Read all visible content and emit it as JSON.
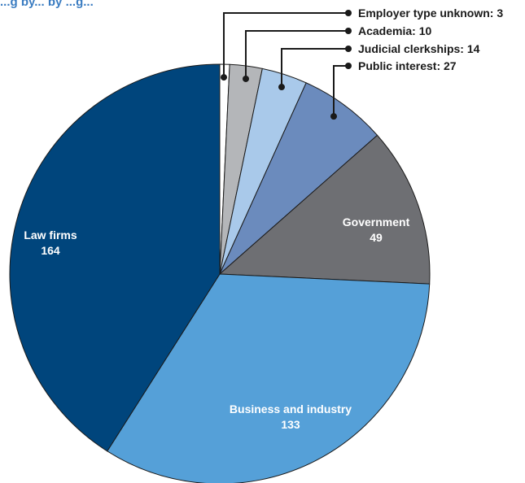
{
  "header_fragment": "...g by... by ...g...",
  "chart_data": {
    "type": "pie",
    "title": "",
    "start": "top",
    "direction": "clockwise",
    "slices": [
      {
        "label": "Employer type unknown",
        "value": 3,
        "color": "#ffffff",
        "callout": true
      },
      {
        "label": "Academia",
        "value": 10,
        "color": "#b4b6b9",
        "callout": true
      },
      {
        "label": "Judicial clerkships",
        "value": 14,
        "color": "#a9c9ea",
        "callout": true
      },
      {
        "label": "Public interest",
        "value": 27,
        "color": "#6b8bbd",
        "callout": true
      },
      {
        "label": "Government",
        "value": 49,
        "color": "#6e6f73",
        "callout": false,
        "text_color": "#ffffff"
      },
      {
        "label": "Business and industry",
        "value": 133,
        "color": "#55a0d8",
        "callout": false,
        "text_color": "#ffffff"
      },
      {
        "label": "Law firms",
        "value": 164,
        "color": "#00457c",
        "callout": false,
        "text_color": "#ffffff"
      }
    ]
  }
}
